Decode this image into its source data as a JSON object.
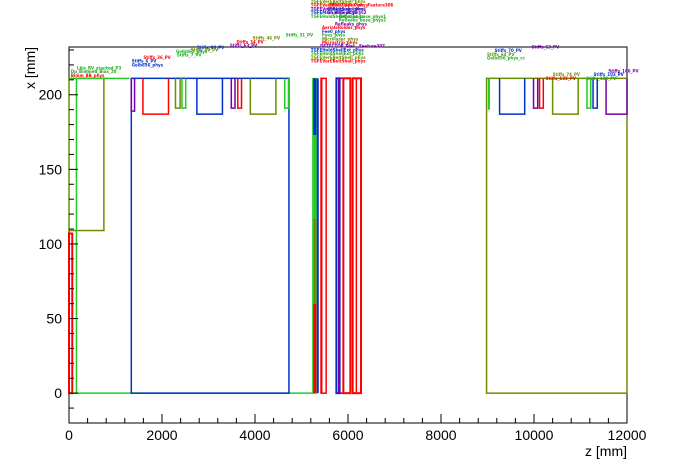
{
  "chart_data": {
    "type": "geometry-outline",
    "xlabel": "z [mm]",
    "ylabel": "x [mm]",
    "xlim": [
      0,
      12000
    ],
    "ylim": [
      -20,
      232
    ],
    "xticks": [
      0,
      2000,
      4000,
      6000,
      8000,
      10000,
      12000
    ],
    "yticks": [
      0,
      50,
      100,
      150,
      200
    ],
    "grid": false,
    "shapes": [
      {
        "kind": "rect",
        "z0": 0,
        "z1": 750,
        "x0": 109,
        "x1": 211,
        "color": "#6b8e00",
        "width": 1.5
      },
      {
        "kind": "rect",
        "z0": 0,
        "z1": 70,
        "x0": 0,
        "x1": 107,
        "color": "#ff0000",
        "width": 2
      },
      {
        "kind": "line",
        "z": 160,
        "x0": 0,
        "x1": 211,
        "color": "#22cc22",
        "width": 1.5
      },
      {
        "kind": "line",
        "z0": 0,
        "z1": 5300,
        "x": 0,
        "color": "#22cc22",
        "width": 1.5
      },
      {
        "kind": "line",
        "z0": 0,
        "z1": 1300,
        "x": 211,
        "color": "#22cc22",
        "width": 1.5
      },
      {
        "kind": "rect",
        "z0": 1340,
        "z1": 4730,
        "x0": 0,
        "x1": 211,
        "color": "#0033cc",
        "width": 1.5
      },
      {
        "kind": "notch",
        "z0": 1340,
        "z1": 1410,
        "x": 189,
        "color": "#7700aa"
      },
      {
        "kind": "notch",
        "z0": 1590,
        "z1": 2140,
        "x": 187,
        "color": "#ff0000"
      },
      {
        "kind": "notch",
        "z0": 2290,
        "z1": 2390,
        "x": 191,
        "color": "#6b8e00"
      },
      {
        "kind": "notch",
        "z0": 2430,
        "z1": 2510,
        "x": 191,
        "color": "#22cc22"
      },
      {
        "kind": "notch",
        "z0": 2750,
        "z1": 3300,
        "x": 187,
        "color": "#0033cc"
      },
      {
        "kind": "notch",
        "z0": 3490,
        "z1": 3570,
        "x": 191,
        "color": "#7700aa"
      },
      {
        "kind": "notch",
        "z0": 3630,
        "z1": 3710,
        "x": 191,
        "color": "#ff0000"
      },
      {
        "kind": "notch",
        "z0": 3900,
        "z1": 4450,
        "x": 187,
        "color": "#6b8e00"
      },
      {
        "kind": "notch",
        "z0": 4640,
        "z1": 4720,
        "x": 191,
        "color": "#22cc22"
      },
      {
        "kind": "rect",
        "z0": 5240,
        "z1": 5330,
        "x0": 0,
        "x1": 211,
        "color": "#22cc22",
        "width": 1
      },
      {
        "kind": "fill",
        "z0": 5250,
        "z1": 5320,
        "x0": 0,
        "x1": 60,
        "color": "#ff0000"
      },
      {
        "kind": "fill",
        "z0": 5250,
        "z1": 5320,
        "x0": 60,
        "x1": 117,
        "color": "#6b8e00"
      },
      {
        "kind": "fill",
        "z0": 5250,
        "z1": 5320,
        "x0": 117,
        "x1": 173,
        "color": "#22cc22"
      },
      {
        "kind": "fill",
        "z0": 5250,
        "z1": 5320,
        "x0": 173,
        "x1": 211,
        "color": "#0033cc"
      },
      {
        "kind": "line",
        "z": 5350,
        "x0": 0,
        "x1": 211,
        "color": "#0033cc",
        "width": 2
      },
      {
        "kind": "line",
        "z": 5430,
        "x0": 0,
        "x1": 211,
        "color": "#ff0000",
        "width": 2
      },
      {
        "kind": "rect",
        "z0": 5420,
        "z1": 5530,
        "x0": 0,
        "x1": 211,
        "color": "#ff0000",
        "width": 1.5
      },
      {
        "kind": "rect",
        "z0": 5750,
        "z1": 5820,
        "x0": 0,
        "x1": 211,
        "color": "#0033cc",
        "width": 2
      },
      {
        "kind": "rect",
        "z0": 5800,
        "z1": 5900,
        "x0": 0,
        "x1": 211,
        "color": "#7700aa",
        "width": 1.5
      },
      {
        "kind": "rect",
        "z0": 5900,
        "z1": 6050,
        "x0": 0,
        "x1": 211,
        "color": "#ff0000",
        "width": 2
      },
      {
        "kind": "rect",
        "z0": 6100,
        "z1": 6280,
        "x0": 0,
        "x1": 211,
        "color": "#ff0000",
        "width": 2
      },
      {
        "kind": "line",
        "z": 6180,
        "x0": 0,
        "x1": 211,
        "color": "#ff0000",
        "width": 1.5
      },
      {
        "kind": "rect",
        "z0": 8980,
        "z1": 12000,
        "x0": 0,
        "x1": 211,
        "color": "#6b8e00",
        "width": 1.5
      },
      {
        "kind": "line",
        "z": 9030,
        "x0": 190,
        "x1": 211,
        "color": "#22cc22",
        "width": 2
      },
      {
        "kind": "notch",
        "z0": 9260,
        "z1": 9800,
        "x": 187,
        "color": "#0033cc"
      },
      {
        "kind": "notch",
        "z0": 9990,
        "z1": 10080,
        "x": 191,
        "color": "#7700aa"
      },
      {
        "kind": "notch",
        "z0": 10120,
        "z1": 10200,
        "x": 191,
        "color": "#ff0000"
      },
      {
        "kind": "notch",
        "z0": 10400,
        "z1": 10950,
        "x": 187,
        "color": "#6b8e00"
      },
      {
        "kind": "notch",
        "z0": 11140,
        "z1": 11220,
        "x": 191,
        "color": "#22cc22"
      },
      {
        "kind": "notch",
        "z0": 11270,
        "z1": 11360,
        "x": 191,
        "color": "#0033cc"
      },
      {
        "kind": "notch",
        "z0": 11550,
        "z1": 12000,
        "x": 187,
        "color": "#7700aa"
      }
    ],
    "annotations": [
      {
        "text": "Lbis_BV_stacked_P3",
        "z": 170,
        "x": 217,
        "color": "#22aa22"
      },
      {
        "text": "Dp_Bimmed_Bias_20",
        "z": 40,
        "x": 214.5,
        "color": "#22aa22"
      },
      {
        "text": "Bimm_BB_phys",
        "z": 40,
        "x": 212,
        "color": "#ff0000"
      },
      {
        "text": "Stiffs_36_PV",
        "z": 1600,
        "x": 224,
        "color": "#ff0000"
      },
      {
        "text": "Stiffs_6_PV",
        "z": 1350,
        "x": 221.5,
        "color": "#0033cc"
      },
      {
        "text": "Gelb856_phys",
        "z": 1350,
        "x": 219,
        "color": "#0033cc"
      },
      {
        "text": "Gelb865_phys",
        "z": 2300,
        "x": 228,
        "color": "#22aa22"
      },
      {
        "text": "Stiffs_7_PV",
        "z": 2320,
        "x": 225.5,
        "color": "#22aa22"
      },
      {
        "text": "Stiffs_08_PV",
        "z": 2750,
        "x": 230.5,
        "color": "#0033cc"
      },
      {
        "text": "Stiffs_09_PV",
        "z": 2620,
        "x": 229,
        "color": "#6b8e00"
      },
      {
        "text": "Stiffs_63_PV",
        "z": 3460,
        "x": 232,
        "color": "#7700aa"
      },
      {
        "text": "Stiffs_34_PV",
        "z": 3600,
        "x": 234.5,
        "color": "#ff0000"
      },
      {
        "text": "Stiffs_46_PV",
        "z": 3950,
        "x": 237,
        "color": "#6b8e00"
      },
      {
        "text": "Stiffs_31_PV",
        "z": 4660,
        "x": 239,
        "color": "#22aa22"
      },
      {
        "text": "TGFEHolder0ShellExt_phys",
        "z": 5200,
        "x": 269,
        "color": "#7700aa"
      },
      {
        "text": "TGFEHolderShellExt_phys",
        "z": 5200,
        "x": 266.5,
        "color": "#0033cc"
      },
      {
        "text": "TGFEVerEBeltShell_phys",
        "z": 5200,
        "x": 264,
        "color": "#22aa22"
      },
      {
        "text": "TGFEVerEBeltShell_phys",
        "z": 5200,
        "x": 261.5,
        "color": "#6b8e00"
      },
      {
        "text": "TGFEVerEBeltUpper_phys",
        "z": 5200,
        "x": 259,
        "color": "#ff0000"
      },
      {
        "text": "TGFEVerEBeltSupp_phys",
        "z": 5200,
        "x": 256.5,
        "color": "#7700aa"
      },
      {
        "text": "TGFEMain_HFE_phys",
        "z": 5200,
        "x": 254,
        "color": "#0033cc"
      },
      {
        "text": "TGFEHoldShellExt_phys",
        "z": 5200,
        "x": 251.5,
        "color": "#22aa22"
      },
      {
        "text": "DETECTOR_Piec__Feature306",
        "z": 5580,
        "x": 259,
        "color": "#ff0000"
      },
      {
        "text": "Ghalopeak_phys",
        "z": 5550,
        "x": 256.5,
        "color": "#0033cc"
      },
      {
        "text": "Ghalopeak_phys2",
        "z": 5550,
        "x": 254,
        "color": "#7700aa"
      },
      {
        "text": "Refleaks_base_phys1",
        "z": 5800,
        "x": 251.5,
        "color": "#22aa22"
      },
      {
        "text": "Refleaks_base_phys2",
        "z": 5800,
        "x": 249,
        "color": "#22aa22"
      },
      {
        "text": "Refleaks_phys",
        "z": 5720,
        "x": 246.5,
        "color": "#7700aa"
      },
      {
        "text": "AerialsHolder_phys",
        "z": 5440,
        "x": 244,
        "color": "#ff0000"
      },
      {
        "text": "Fee0_phys",
        "z": 5440,
        "x": 241.5,
        "color": "#0033cc"
      },
      {
        "text": "Fees_phys",
        "z": 5440,
        "x": 239,
        "color": "#22aa22"
      },
      {
        "text": "Microlaser_phys",
        "z": 5440,
        "x": 236.5,
        "color": "#6b8e00"
      },
      {
        "text": "Microstrip_phys",
        "z": 5440,
        "x": 234,
        "color": "#ff0000"
      },
      {
        "text": "DETECTOR_Piec__Feature307",
        "z": 5400,
        "x": 231.5,
        "color": "#7700aa"
      },
      {
        "text": "TGFEHoldShellExt_phys",
        "z": 5200,
        "x": 229,
        "color": "#0033cc"
      },
      {
        "text": "TGFEHoldShellExt_phys",
        "z": 5200,
        "x": 226.5,
        "color": "#22aa22"
      },
      {
        "text": "TGFEVerEBeltShell_phys",
        "z": 5200,
        "x": 224,
        "color": "#6b8e00"
      },
      {
        "text": "TGFEVerEBeltShell_phys",
        "z": 5200,
        "x": 221.5,
        "color": "#ff0000"
      },
      {
        "text": "Stiffs_63_PV",
        "z": 9950,
        "x": 231,
        "color": "#7700aa"
      },
      {
        "text": "Stiffs_70_PV",
        "z": 9150,
        "x": 228.5,
        "color": "#0033cc"
      },
      {
        "text": "Stiffs_64_PV",
        "z": 8990,
        "x": 226,
        "color": "#6b8e00"
      },
      {
        "text": "Gelb856_phys_cc",
        "z": 8990,
        "x": 223.5,
        "color": "#22aa22"
      },
      {
        "text": "Stiffs_166_PV",
        "z": 11600,
        "x": 215,
        "color": "#7700aa"
      },
      {
        "text": "Stiffs_103_PV",
        "z": 11280,
        "x": 212.5,
        "color": "#0033cc"
      },
      {
        "text": "Stiffs_132_PV",
        "z": 11120,
        "x": 210,
        "color": "#22aa22"
      },
      {
        "text": "Stiffs_74_PV",
        "z": 10400,
        "x": 212.5,
        "color": "#6b8e00"
      },
      {
        "text": "Stiffs_133_PV",
        "z": 10250,
        "x": 210,
        "color": "#ff0000"
      }
    ]
  }
}
